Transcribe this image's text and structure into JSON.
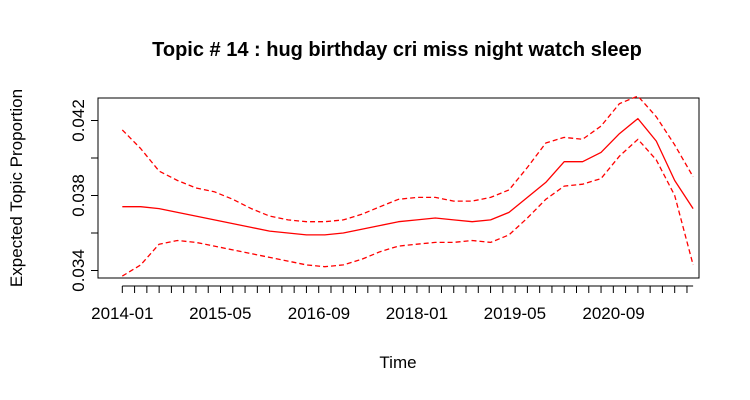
{
  "chart_data": {
    "type": "line",
    "title": "Topic # 14 :  hug birthday cri miss night watch sleep",
    "xlabel": "Time",
    "ylabel": "Expected Topic Proportion",
    "y_ticks": [
      0.034,
      0.038,
      0.042
    ],
    "y_minor_ticks": [
      0.036,
      0.04
    ],
    "x_tick_labels": [
      "2014-01",
      "2015-05",
      "2016-09",
      "2018-01",
      "2019-05",
      "2020-09"
    ],
    "x_ticks_decimal_years": [
      2014.0,
      2015.33,
      2016.67,
      2018.0,
      2019.33,
      2020.67
    ],
    "xlim": [
      2013.67,
      2021.83
    ],
    "ylim": [
      0.0336,
      0.0432
    ],
    "grid": false,
    "legend": "none",
    "line_color": "#ff0000",
    "x": [
      2014.0,
      2014.25,
      2014.5,
      2014.75,
      2015.0,
      2015.25,
      2015.5,
      2015.75,
      2016.0,
      2016.25,
      2016.5,
      2016.75,
      2017.0,
      2017.25,
      2017.5,
      2017.75,
      2018.0,
      2018.25,
      2018.5,
      2018.75,
      2019.0,
      2019.25,
      2019.5,
      2019.75,
      2020.0,
      2020.25,
      2020.5,
      2020.75,
      2021.0,
      2021.25,
      2021.5,
      2021.75
    ],
    "series": [
      {
        "role": "estimate",
        "style": "solid",
        "values": [
          0.0374,
          0.0374,
          0.0373,
          0.0371,
          0.0369,
          0.0367,
          0.0365,
          0.0363,
          0.0361,
          0.036,
          0.0359,
          0.0359,
          0.036,
          0.0362,
          0.0364,
          0.0366,
          0.0367,
          0.0368,
          0.0367,
          0.0366,
          0.0367,
          0.0371,
          0.0379,
          0.0387,
          0.0398,
          0.0398,
          0.0403,
          0.0413,
          0.0421,
          0.0409,
          0.0388,
          0.0373
        ]
      },
      {
        "role": "upper_ci",
        "style": "dashed",
        "values": [
          0.0415,
          0.0405,
          0.0393,
          0.0388,
          0.0384,
          0.0382,
          0.0378,
          0.0373,
          0.0369,
          0.0367,
          0.0366,
          0.0366,
          0.0367,
          0.037,
          0.0374,
          0.0378,
          0.0379,
          0.0379,
          0.0377,
          0.0377,
          0.0379,
          0.0383,
          0.0395,
          0.0408,
          0.0411,
          0.041,
          0.0417,
          0.0429,
          0.0433,
          0.0422,
          0.0407,
          0.039
        ]
      },
      {
        "role": "lower_ci",
        "style": "dashed",
        "values": [
          0.0337,
          0.0343,
          0.0354,
          0.0356,
          0.0355,
          0.0353,
          0.0351,
          0.0349,
          0.0347,
          0.0345,
          0.0343,
          0.0342,
          0.0343,
          0.0346,
          0.035,
          0.0353,
          0.0354,
          0.0355,
          0.0355,
          0.0356,
          0.0355,
          0.0359,
          0.0368,
          0.0378,
          0.0385,
          0.0386,
          0.0389,
          0.0401,
          0.041,
          0.0399,
          0.038,
          0.0343
        ]
      }
    ]
  }
}
